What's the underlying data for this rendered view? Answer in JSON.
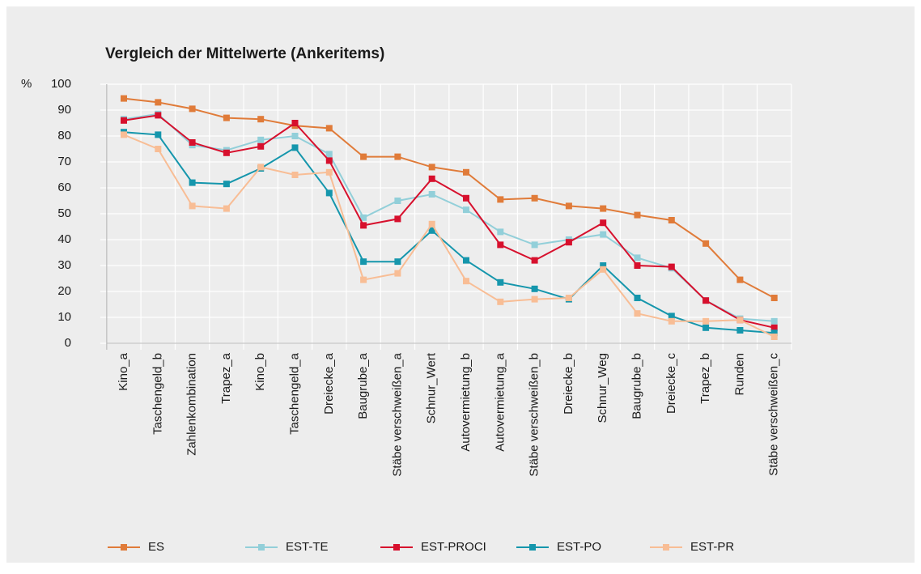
{
  "chart_data": {
    "type": "line",
    "title": "Vergleich der Mittelwerte (Ankeritems)",
    "y_label": "%",
    "categories": [
      "Kino_a",
      "Taschengeld_b",
      "Zahlenkombination",
      "Trapez_a",
      "Kino_b",
      "Taschengeld_a",
      "Dreiecke_a",
      "Baugrube_a",
      "Stäbe verschweißen_a",
      "Schnur_Wert",
      "Autovermietung_b",
      "Autovermietung_a",
      "Stäbe verschweißen_b",
      "Dreiecke_b",
      "Schnur_Weg",
      "Baugrube_b",
      "Dreiecke_c",
      "Trapez_b",
      "Runden",
      "Stäbe verschweißen_c"
    ],
    "series": [
      {
        "name": "ES",
        "color": "#e07b39",
        "values": [
          94.5,
          93,
          90.5,
          87,
          86.5,
          84,
          83,
          72,
          72,
          68,
          66,
          55.5,
          56,
          53,
          52,
          49.5,
          47.5,
          38.5,
          24.5,
          17.5
        ]
      },
      {
        "name": "EST-TE",
        "color": "#92cfd9",
        "values": [
          86.5,
          88.5,
          76.5,
          74.5,
          78.5,
          80,
          73,
          48.5,
          55,
          57.5,
          51.5,
          43,
          38,
          40,
          42,
          33,
          29,
          16.5,
          9.5,
          8.5
        ]
      },
      {
        "name": "EST-PROCI",
        "color": "#d7102d",
        "values": [
          86,
          88,
          77.5,
          73.5,
          76,
          85,
          70.5,
          45.5,
          48,
          63.5,
          56,
          38,
          32,
          39,
          46.5,
          30,
          29.5,
          16.5,
          9,
          6
        ]
      },
      {
        "name": "EST-PO",
        "color": "#1596ac",
        "values": [
          81.5,
          80.5,
          62,
          61.5,
          67.5,
          75.5,
          58,
          31.5,
          31.5,
          43.5,
          32,
          23.5,
          21,
          17,
          30,
          17.5,
          10.5,
          6,
          5,
          4
        ]
      },
      {
        "name": "EST-PR",
        "color": "#f8bd95",
        "values": [
          80.5,
          75,
          53,
          52,
          68,
          65,
          66,
          24.5,
          27,
          46,
          24,
          16,
          17,
          17.5,
          28.5,
          11.5,
          8.5,
          8.5,
          9,
          2.5
        ]
      }
    ],
    "ylim": [
      0,
      100
    ],
    "yticks": [
      0,
      10,
      20,
      30,
      40,
      50,
      60,
      70,
      80,
      90,
      100
    ],
    "grid": true
  }
}
